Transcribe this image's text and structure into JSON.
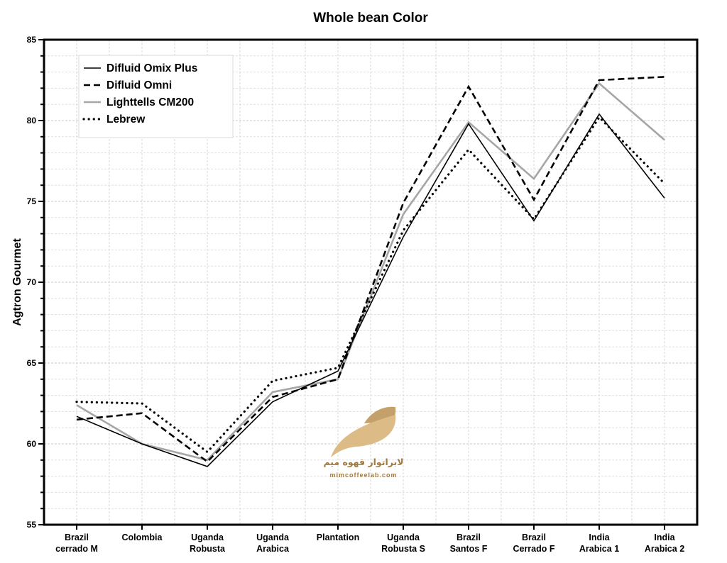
{
  "chart_data": {
    "type": "line",
    "title": "Whole bean Color",
    "xlabel": "",
    "ylabel": "Agtron Gourmet",
    "ylim": [
      55,
      85
    ],
    "yticks": [
      "55",
      "60",
      "65",
      "70",
      "75",
      "80",
      "85"
    ],
    "grid": true,
    "legend_position": "top-left",
    "categories": [
      [
        "Brazil",
        "cerrado M"
      ],
      [
        "Colombia"
      ],
      [
        "Uganda",
        "Robusta"
      ],
      [
        "Uganda",
        "Arabica"
      ],
      [
        "Plantation"
      ],
      [
        "Uganda",
        "Robusta S"
      ],
      [
        "Brazil",
        "Santos F"
      ],
      [
        "Brazil",
        "Cerrado F"
      ],
      [
        "India",
        "Arabica 1"
      ],
      [
        "India",
        "Arabica 2"
      ]
    ],
    "series": [
      {
        "name": "Difluid Omix Plus",
        "style": "solid",
        "color": "#000000",
        "values": [
          61.7,
          60.0,
          58.6,
          62.6,
          64.5,
          72.8,
          79.8,
          73.8,
          80.4,
          75.2
        ]
      },
      {
        "name": "Difluid Omni",
        "style": "dashed",
        "color": "#000000",
        "values": [
          61.5,
          61.9,
          58.9,
          62.9,
          64.0,
          74.9,
          82.1,
          75.1,
          82.5,
          82.7
        ]
      },
      {
        "name": "Lighttells CM200",
        "style": "solid",
        "color": "#a6a6a6",
        "values": [
          62.4,
          60.0,
          59.0,
          63.2,
          64.0,
          74.2,
          79.9,
          76.4,
          82.3,
          78.8
        ]
      },
      {
        "name": "Lebrew",
        "style": "dotted",
        "color": "#000000",
        "values": [
          62.6,
          62.5,
          59.5,
          63.9,
          64.7,
          73.2,
          78.2,
          73.9,
          80.2,
          76.1
        ]
      }
    ]
  },
  "watermark": {
    "name_fa": "لابراتوار قهوه میم",
    "url": "mimcoffeelab.com",
    "color": "#c8a265"
  }
}
